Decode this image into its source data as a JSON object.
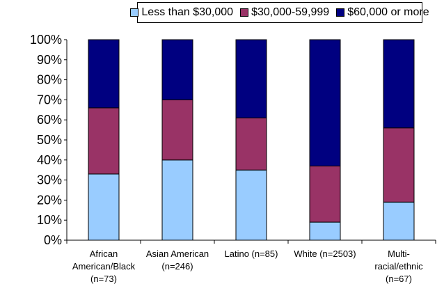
{
  "chart_data": {
    "type": "bar",
    "stacked": true,
    "percent": true,
    "categories": [
      [
        "African",
        "American/Black",
        "(n=73)"
      ],
      [
        "Asian American",
        "(n=246)"
      ],
      [
        "Latino (n=85)"
      ],
      [
        "White (n=2503)"
      ],
      [
        "Multi-",
        "racial/ethnic",
        "(n=67)"
      ]
    ],
    "series": [
      {
        "name": "Less than $30,000",
        "color": "#99ccff",
        "values": [
          33,
          40,
          35,
          9,
          19
        ]
      },
      {
        "name": "$30,000-59,999",
        "color": "#993366",
        "values": [
          33,
          30,
          26,
          28,
          37
        ]
      },
      {
        "name": "$60,000 or more",
        "color": "#000080",
        "values": [
          34,
          30,
          39,
          63,
          44
        ]
      }
    ],
    "ylim": [
      0,
      100
    ],
    "yticks": [
      "0%",
      "10%",
      "20%",
      "30%",
      "40%",
      "50%",
      "60%",
      "70%",
      "80%",
      "90%",
      "100%"
    ],
    "grid": false,
    "legend_position": "top"
  }
}
